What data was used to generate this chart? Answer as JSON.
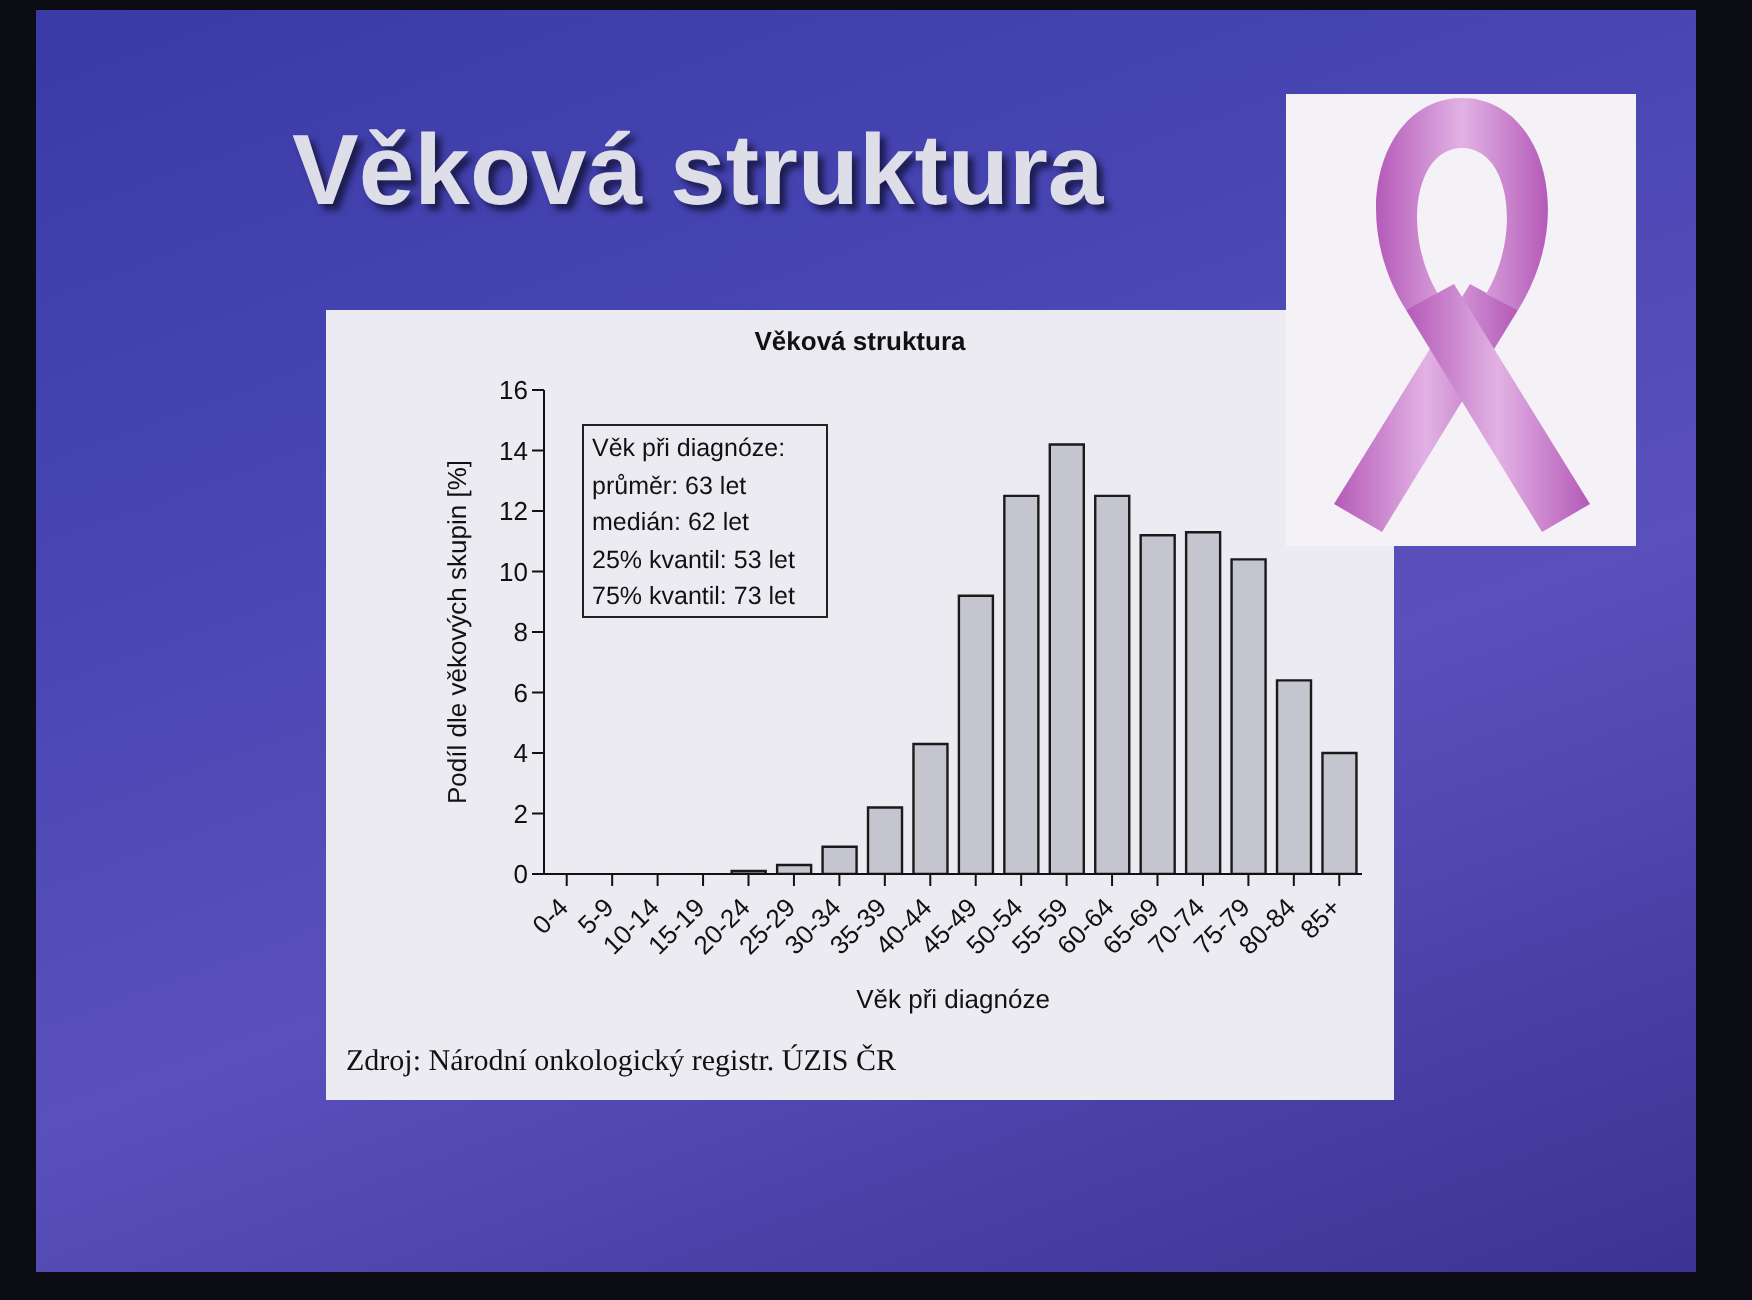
{
  "chart_data": {
    "type": "bar",
    "title": "Věková struktura",
    "subtitle": "Věková struktura",
    "xlabel": "Věk při diagnóze",
    "ylabel": "Podíl dle věkových skupin [%]",
    "categories": [
      "0-4",
      "5-9",
      "10-14",
      "15-19",
      "20-24",
      "25-29",
      "30-34",
      "35-39",
      "40-44",
      "45-49",
      "50-54",
      "55-59",
      "60-64",
      "65-69",
      "70-74",
      "75-79",
      "80-84",
      "85+"
    ],
    "values": [
      0,
      0,
      0,
      0,
      0.1,
      0.3,
      0.9,
      2.2,
      4.3,
      9.2,
      12.5,
      14.2,
      12.5,
      11.2,
      11.3,
      10.4,
      6.4,
      4.0
    ],
    "color": "#c5c5d0",
    "ylim": [
      0,
      16
    ],
    "yticks": [
      0,
      2,
      4,
      6,
      8,
      10,
      12,
      14,
      16
    ],
    "annotations": [
      "Věk při diagnóze:\nprůměr: 63 let\nmedián: 62 let\n25% kvantil: 53 let\n75% kvantil: 73 let",
      "Zdroj: Národní onkologický registr. ÚZIS ČR"
    ]
  }
}
